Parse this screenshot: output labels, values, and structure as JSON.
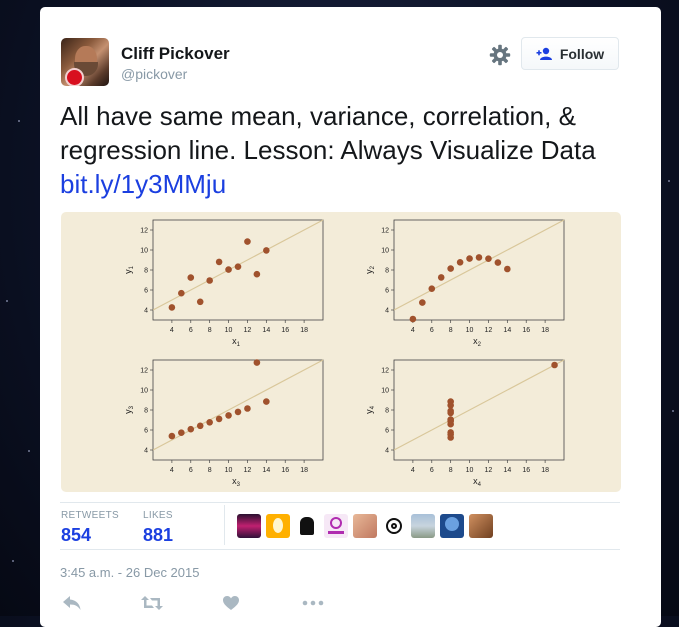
{
  "user": {
    "name": "Cliff Pickover",
    "handle": "@pickover"
  },
  "follow_button": {
    "label": "Follow"
  },
  "tweet": {
    "text": "All have same mean, variance, correlation, & regression line. Lesson: Always Visualize Data",
    "link": "bit.ly/1y3MMju"
  },
  "stats": {
    "retweets_label": "RETWEETS",
    "retweets": "854",
    "likes_label": "LIKES",
    "likes": "881"
  },
  "timestamp": "3:45 a.m. - 26 Dec 2015",
  "colors": {
    "accent": "#1b3fe0",
    "plot_bg": "#f3ecd9",
    "point": "#a0522d",
    "fit_line": "#d9c79a"
  },
  "icons": [
    "gear-icon",
    "follow-person-icon",
    "reply-icon",
    "retweet-icon",
    "like-icon",
    "more-icon"
  ],
  "chart_data": [
    {
      "type": "scatter",
      "title": "",
      "xlabel": "x1",
      "ylabel": "y1",
      "xlim": [
        2,
        20
      ],
      "ylim": [
        3,
        13
      ],
      "xticks": [
        4,
        6,
        8,
        10,
        12,
        14,
        16,
        18
      ],
      "yticks": [
        4,
        6,
        8,
        10,
        12
      ],
      "x": [
        10,
        8,
        13,
        9,
        11,
        14,
        6,
        4,
        12,
        7,
        5
      ],
      "y": [
        8.04,
        6.95,
        7.58,
        8.81,
        8.33,
        9.96,
        7.24,
        4.26,
        10.84,
        4.82,
        5.68
      ],
      "regression": [
        3,
        0.5
      ]
    },
    {
      "type": "scatter",
      "title": "",
      "xlabel": "x2",
      "ylabel": "y2",
      "xlim": [
        2,
        20
      ],
      "ylim": [
        3,
        13
      ],
      "xticks": [
        4,
        6,
        8,
        10,
        12,
        14,
        16,
        18
      ],
      "yticks": [
        4,
        6,
        8,
        10,
        12
      ],
      "x": [
        10,
        8,
        13,
        9,
        11,
        14,
        6,
        4,
        12,
        7,
        5
      ],
      "y": [
        9.14,
        8.14,
        8.74,
        8.77,
        9.26,
        8.1,
        6.13,
        3.1,
        9.13,
        7.26,
        4.74
      ],
      "regression": [
        3,
        0.5
      ]
    },
    {
      "type": "scatter",
      "title": "",
      "xlabel": "x3",
      "ylabel": "y3",
      "xlim": [
        2,
        20
      ],
      "ylim": [
        3,
        13
      ],
      "xticks": [
        4,
        6,
        8,
        10,
        12,
        14,
        16,
        18
      ],
      "yticks": [
        4,
        6,
        8,
        10,
        12
      ],
      "x": [
        10,
        8,
        13,
        9,
        11,
        14,
        6,
        4,
        12,
        7,
        5
      ],
      "y": [
        7.46,
        6.77,
        12.74,
        7.11,
        7.81,
        8.84,
        6.08,
        5.39,
        8.15,
        6.42,
        5.73
      ],
      "regression": [
        3,
        0.5
      ]
    },
    {
      "type": "scatter",
      "title": "",
      "xlabel": "x4",
      "ylabel": "y4",
      "xlim": [
        2,
        20
      ],
      "ylim": [
        3,
        13
      ],
      "xticks": [
        4,
        6,
        8,
        10,
        12,
        14,
        16,
        18
      ],
      "yticks": [
        4,
        6,
        8,
        10,
        12
      ],
      "x": [
        8,
        8,
        8,
        8,
        8,
        8,
        8,
        19,
        8,
        8,
        8
      ],
      "y": [
        6.58,
        5.76,
        7.71,
        8.84,
        8.47,
        7.04,
        5.25,
        12.5,
        5.56,
        7.91,
        6.89
      ],
      "regression": [
        3,
        0.5
      ]
    }
  ]
}
